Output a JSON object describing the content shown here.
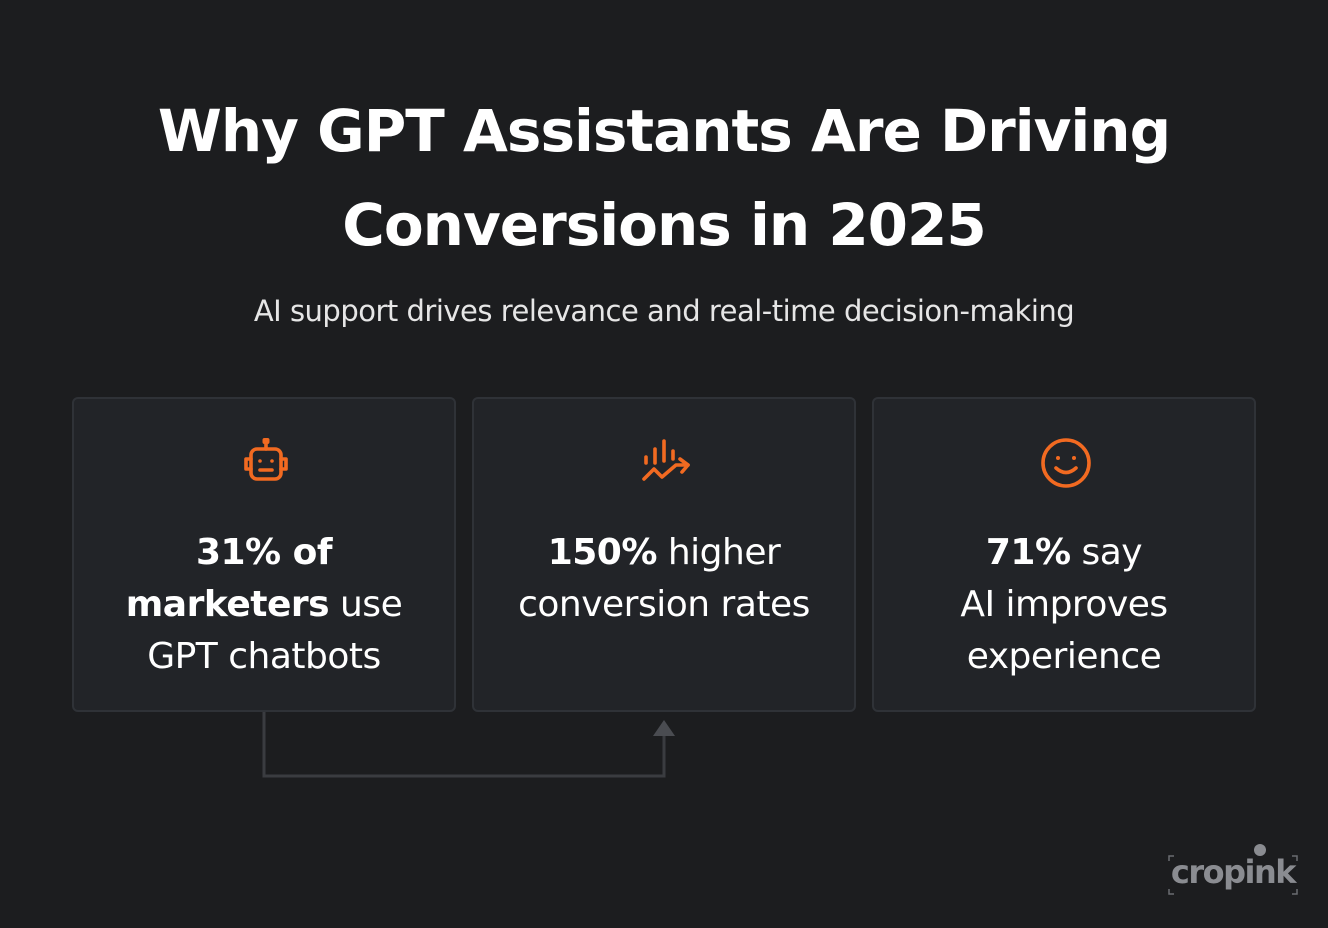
{
  "title": {
    "line1": "Why GPT Assistants Are Driving",
    "line2": "Conversions in 2025"
  },
  "subtitle": "AI support drives relevance and real-time decision-making",
  "accent_color": "#f26a21",
  "cards": [
    {
      "icon": "robot-icon",
      "line1_bold": "31% of",
      "line2_bold": "marketers",
      "line2_rest": " use",
      "line3": "GPT chatbots"
    },
    {
      "icon": "growth-chart-icon",
      "line1_bold": "150%",
      "line1_rest": " higher",
      "line2": "conversion rates"
    },
    {
      "icon": "smiley-icon",
      "line1_bold": "71%",
      "line1_rest": " say",
      "line2": "AI improves",
      "line3": "experience"
    }
  ],
  "logo": {
    "text": "cropink"
  }
}
